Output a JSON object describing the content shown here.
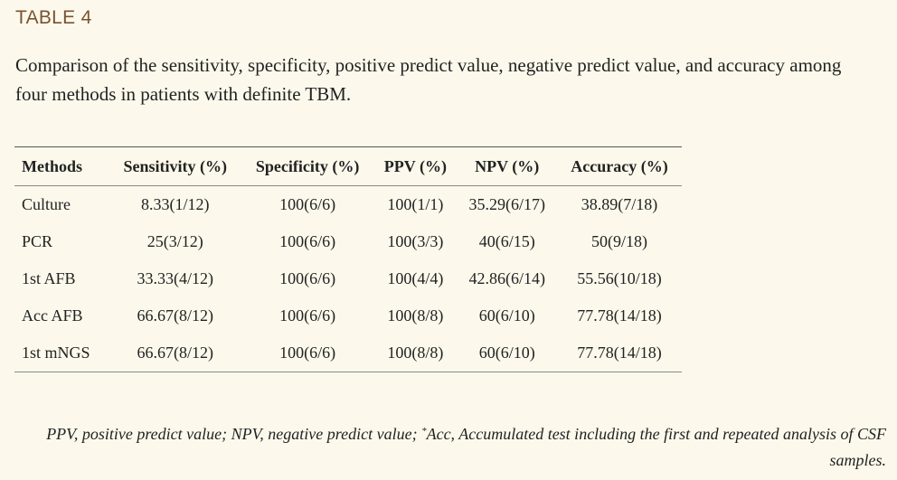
{
  "table_label": "TABLE 4",
  "caption": "Comparison of the sensitivity, specificity, positive predict value, negative predict value, and accuracy among four methods in patients with definite TBM.",
  "table": {
    "headers": [
      "Methods",
      "Sensitivity (%)",
      "Specificity (%)",
      "PPV (%)",
      "NPV (%)",
      "Accuracy (%)"
    ],
    "rows": [
      [
        "Culture",
        "8.33(1/12)",
        "100(6/6)",
        "100(1/1)",
        "35.29(6/17)",
        "38.89(7/18)"
      ],
      [
        "PCR",
        "25(3/12)",
        "100(6/6)",
        "100(3/3)",
        "40(6/15)",
        "50(9/18)"
      ],
      [
        "1st AFB",
        "33.33(4/12)",
        "100(6/6)",
        "100(4/4)",
        "42.86(6/14)",
        "55.56(10/18)"
      ],
      [
        "Acc AFB",
        "66.67(8/12)",
        "100(6/6)",
        "100(8/8)",
        "60(6/10)",
        "77.78(14/18)"
      ],
      [
        "1st mNGS",
        "66.67(8/12)",
        "100(6/6)",
        "100(8/8)",
        "60(6/10)",
        "77.78(14/18)"
      ]
    ]
  },
  "footnote": {
    "part1": "PPV, positive predict value; NPV, negative predict value; ",
    "marker": "*",
    "part2": "Acc, Accumulated test including the first and repeated analysis of CSF samples."
  }
}
